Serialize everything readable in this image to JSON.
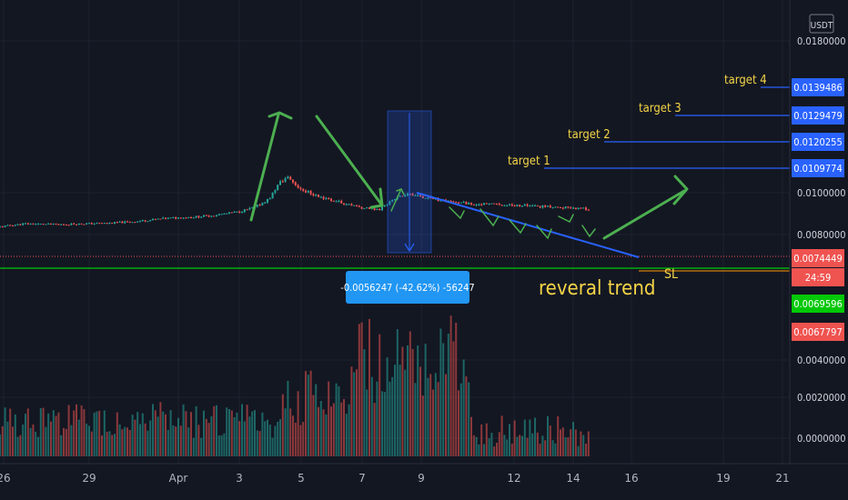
{
  "chart_data": {
    "type": "candlestick",
    "currency_badge": "USDT",
    "price_scale": {
      "labels": [
        "0.0180000",
        "0.0100000",
        "0.0080000",
        "0.0040000",
        "0.0020000",
        "0.0000000"
      ],
      "ylim": [
        0.0058,
        0.018
      ]
    },
    "time_axis": {
      "labels": [
        "26",
        "29",
        "Apr",
        "3",
        "5",
        "7",
        "9",
        "12",
        "14",
        "16",
        "19",
        "21"
      ]
    },
    "price_tags": [
      {
        "value": "0.0139486",
        "color": "#2962ff"
      },
      {
        "value": "0.0129479",
        "color": "#2962ff"
      },
      {
        "value": "0.0120255",
        "color": "#2962ff"
      },
      {
        "value": "0.0109774",
        "color": "#2962ff"
      },
      {
        "value": "0.0074449",
        "color": "#ef5350"
      },
      {
        "value": "24:59",
        "color": "#ef5350"
      },
      {
        "value": "0.0069596",
        "color": "#00c805"
      },
      {
        "value": "0.0067797",
        "color": "#ef5350"
      }
    ],
    "targets": [
      {
        "label": "target 1",
        "price": 0.0109774
      },
      {
        "label": "target 2",
        "price": 0.0120255
      },
      {
        "label": "target 3",
        "price": 0.0129479
      },
      {
        "label": "target 4",
        "price": 0.0139486
      }
    ],
    "support_line": 0.0069596,
    "stop_loss": {
      "label": "SL",
      "price": 0.0067797
    },
    "last_price": 0.0074449,
    "measure_box": {
      "text": "-0.0056247 (-42.62%) -56247"
    },
    "annotation": "reveral trend",
    "colors": {
      "up": "#26a69a",
      "down": "#ef5350",
      "arrow": "#4caf50",
      "target_text": "#f5d547",
      "target_line": "#2962ff",
      "trend_line": "#2962ff",
      "support": "#00c805"
    }
  }
}
